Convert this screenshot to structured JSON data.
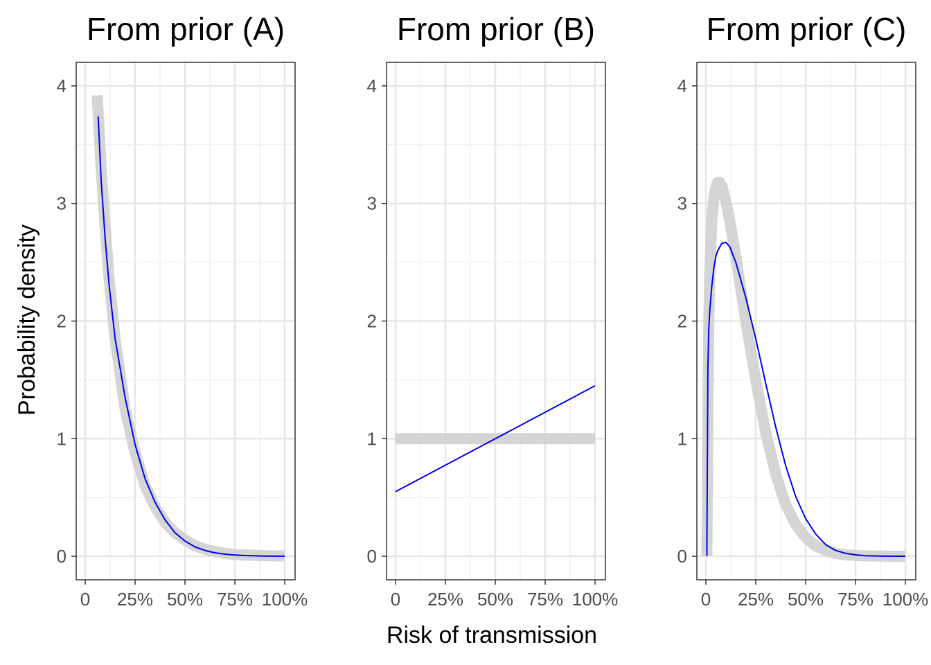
{
  "chart_data": {
    "type": "line",
    "ylabel": "Probability density",
    "xlabel": "Risk of transmission",
    "xlim": [
      0,
      1
    ],
    "ylim": [
      -0.2,
      4.2
    ],
    "x_ticks": [
      {
        "value": 0,
        "label": "0"
      },
      {
        "value": 0.25,
        "label": "25%"
      },
      {
        "value": 0.5,
        "label": "50%"
      },
      {
        "value": 0.75,
        "label": "75%"
      },
      {
        "value": 1,
        "label": "100%"
      }
    ],
    "y_ticks": [
      {
        "value": 0,
        "label": "0"
      },
      {
        "value": 1,
        "label": "1"
      },
      {
        "value": 2,
        "label": "2"
      },
      {
        "value": 3,
        "label": "3"
      },
      {
        "value": 4,
        "label": "4"
      }
    ],
    "grid": true,
    "colors": {
      "prior_line": "#d0d0d0",
      "posterior_line": "#0000ee",
      "grid_major": "#e6e6e6",
      "grid_minor": "#f1f1f1",
      "panel_border": "#333333"
    },
    "panels": [
      {
        "title": "From prior (A)",
        "series": [
          {
            "style": "thick-grey",
            "x": [
              0.06,
              0.08,
              0.1,
              0.12,
              0.15,
              0.2,
              0.25,
              0.3,
              0.35,
              0.4,
              0.45,
              0.5,
              0.55,
              0.6,
              0.65,
              0.7,
              0.75,
              0.8,
              0.9,
              1.0
            ],
            "y": [
              3.92,
              3.3,
              2.8,
              2.35,
              1.85,
              1.25,
              0.88,
              0.6,
              0.42,
              0.29,
              0.2,
              0.14,
              0.09,
              0.06,
              0.04,
              0.025,
              0.015,
              0.01,
              0.005,
              0.003
            ]
          },
          {
            "style": "thin-blue",
            "x": [
              0.065,
              0.08,
              0.1,
              0.12,
              0.15,
              0.2,
              0.25,
              0.3,
              0.35,
              0.4,
              0.45,
              0.5,
              0.55,
              0.6,
              0.65,
              0.7,
              0.75,
              0.8,
              0.9,
              1.0
            ],
            "y": [
              3.74,
              3.2,
              2.7,
              2.3,
              1.85,
              1.35,
              0.95,
              0.66,
              0.46,
              0.31,
              0.2,
              0.13,
              0.08,
              0.05,
              0.03,
              0.018,
              0.01,
              0.006,
              0.002,
              0.0
            ]
          }
        ]
      },
      {
        "title": "From prior (B)",
        "series": [
          {
            "style": "thick-grey",
            "x": [
              0,
              1
            ],
            "y": [
              1.0,
              1.0
            ]
          },
          {
            "style": "thin-blue",
            "x": [
              0,
              1
            ],
            "y": [
              0.55,
              1.45
            ]
          }
        ]
      },
      {
        "title": "From prior (C)",
        "series": [
          {
            "style": "thick-grey",
            "x": [
              0.005,
              0.01,
              0.015,
              0.02,
              0.03,
              0.04,
              0.05,
              0.06,
              0.07,
              0.08,
              0.1,
              0.12,
              0.15,
              0.2,
              0.25,
              0.3,
              0.35,
              0.4,
              0.45,
              0.5,
              0.55,
              0.6,
              0.65,
              0.7,
              0.75,
              0.8,
              0.9,
              1.0
            ],
            "y": [
              0.0,
              1.2,
              2.0,
              2.45,
              2.85,
              3.05,
              3.14,
              3.18,
              3.18,
              3.15,
              3.02,
              2.85,
              2.55,
              2.0,
              1.5,
              1.05,
              0.7,
              0.44,
              0.27,
              0.16,
              0.09,
              0.05,
              0.025,
              0.012,
              0.006,
              0.003,
              0.001,
              0.0
            ]
          },
          {
            "style": "thin-blue",
            "x": [
              0.005,
              0.01,
              0.015,
              0.02,
              0.03,
              0.04,
              0.05,
              0.06,
              0.08,
              0.1,
              0.12,
              0.15,
              0.2,
              0.25,
              0.3,
              0.35,
              0.4,
              0.45,
              0.5,
              0.55,
              0.6,
              0.65,
              0.7,
              0.75,
              0.8,
              0.9,
              1.0
            ],
            "y": [
              0.0,
              1.6,
              1.95,
              2.1,
              2.3,
              2.45,
              2.55,
              2.6,
              2.66,
              2.67,
              2.63,
              2.5,
              2.2,
              1.85,
              1.47,
              1.1,
              0.77,
              0.51,
              0.32,
              0.19,
              0.1,
              0.05,
              0.025,
              0.012,
              0.005,
              0.001,
              0.0
            ]
          }
        ]
      }
    ]
  }
}
